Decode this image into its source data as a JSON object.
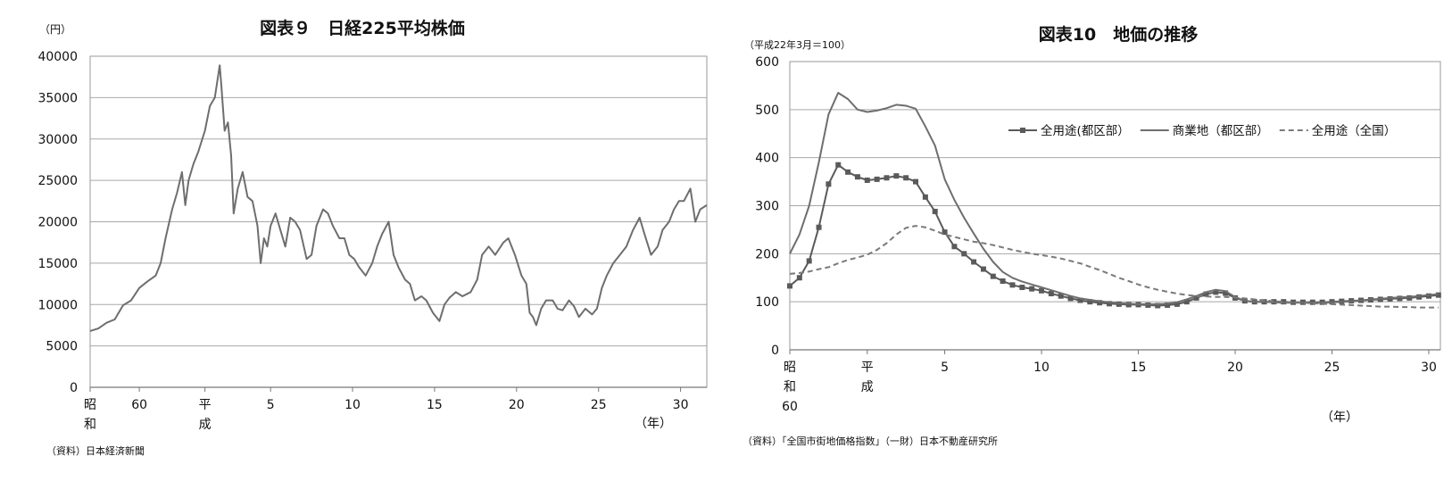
{
  "chart_data": [
    {
      "type": "line",
      "title": "図表９　日経225平均株価",
      "ylabel": "（円）",
      "xlabel": "（年）",
      "source": "（資料）日本経済新聞",
      "ylim": [
        0,
        40000
      ],
      "yticks": [
        "0",
        "5000",
        "10000",
        "15000",
        "20000",
        "25000",
        "30000",
        "35000",
        "40000"
      ],
      "xlim": [
        1982,
        2019.6
      ],
      "xticks": [
        {
          "x": 1982,
          "lines": [
            "昭",
            "和"
          ]
        },
        {
          "x": 1985,
          "lines": [
            "60"
          ]
        },
        {
          "x": 1989,
          "lines": [
            "平",
            "成"
          ]
        },
        {
          "x": 1993,
          "lines": [
            "5"
          ]
        },
        {
          "x": 1998,
          "lines": [
            "10"
          ]
        },
        {
          "x": 2003,
          "lines": [
            "15"
          ]
        },
        {
          "x": 2008,
          "lines": [
            "20"
          ]
        },
        {
          "x": 2013,
          "lines": [
            "25"
          ]
        },
        {
          "x": 2018,
          "lines": [
            "30"
          ]
        }
      ],
      "grid": true,
      "series": [
        {
          "color": "#6e6e6e",
          "x": [
            1982.0,
            1982.5,
            1983.0,
            1983.5,
            1984.0,
            1984.5,
            1985.0,
            1985.5,
            1986.0,
            1986.3,
            1986.6,
            1987.0,
            1987.3,
            1987.6,
            1987.8,
            1988.0,
            1988.3,
            1988.6,
            1989.0,
            1989.3,
            1989.6,
            1989.9,
            1990.0,
            1990.2,
            1990.4,
            1990.6,
            1990.75,
            1991.0,
            1991.3,
            1991.6,
            1991.9,
            1992.2,
            1992.4,
            1992.6,
            1992.8,
            1993.0,
            1993.3,
            1993.6,
            1993.9,
            1994.2,
            1994.5,
            1994.8,
            1995.2,
            1995.5,
            1995.8,
            1996.2,
            1996.5,
            1996.8,
            1997.2,
            1997.5,
            1997.8,
            1998.1,
            1998.4,
            1998.8,
            1999.2,
            1999.5,
            1999.8,
            2000.2,
            2000.5,
            2000.8,
            2001.2,
            2001.5,
            2001.8,
            2002.2,
            2002.5,
            2002.9,
            2003.3,
            2003.6,
            2003.9,
            2004.3,
            2004.7,
            2005.2,
            2005.6,
            2005.9,
            2006.3,
            2006.7,
            2007.2,
            2007.5,
            2007.9,
            2008.3,
            2008.6,
            2008.8,
            2009.0,
            2009.2,
            2009.5,
            2009.8,
            2010.2,
            2010.5,
            2010.8,
            2011.2,
            2011.5,
            2011.8,
            2012.2,
            2012.6,
            2012.9,
            2013.2,
            2013.5,
            2013.9,
            2014.3,
            2014.7,
            2015.1,
            2015.5,
            2015.8,
            2016.2,
            2016.6,
            2016.9,
            2017.3,
            2017.6,
            2017.9,
            2018.2,
            2018.6,
            2018.9,
            2019.2,
            2019.6
          ],
          "y": [
            6800,
            7100,
            7800,
            8200,
            9900,
            10500,
            12000,
            12800,
            13500,
            15000,
            18000,
            21500,
            23500,
            26000,
            22000,
            25000,
            27000,
            28500,
            31000,
            34000,
            35000,
            38900,
            36500,
            31000,
            32000,
            28000,
            21000,
            24000,
            26000,
            23000,
            22500,
            19500,
            15000,
            18000,
            17000,
            19500,
            21000,
            19000,
            17000,
            20500,
            20000,
            19000,
            15500,
            16000,
            19500,
            21500,
            21000,
            19500,
            18000,
            18000,
            16000,
            15500,
            14500,
            13500,
            15000,
            17000,
            18500,
            20000,
            16000,
            14500,
            13000,
            12500,
            10500,
            11000,
            10500,
            9000,
            8000,
            10000,
            10800,
            11500,
            11000,
            11500,
            13000,
            16000,
            17000,
            16000,
            17500,
            18000,
            16000,
            13500,
            12500,
            9000,
            8500,
            7500,
            9500,
            10500,
            10500,
            9500,
            9300,
            10500,
            9800,
            8500,
            9500,
            8800,
            9500,
            12000,
            13500,
            15000,
            16000,
            17000,
            19000,
            20500,
            18500,
            16000,
            17000,
            19000,
            20000,
            21500,
            22500,
            22500,
            24000,
            20000,
            21500,
            22000
          ]
        }
      ]
    },
    {
      "type": "line",
      "title": "図表10　地価の推移",
      "ylabel": "（平成22年3月＝100）",
      "xlabel": "（年）",
      "source": "（資料）「全国市街地価格指数」（一財）日本不動産研究所",
      "ylim": [
        0,
        600
      ],
      "yticks": [
        "0",
        "100",
        "200",
        "300",
        "400",
        "500",
        "600"
      ],
      "xlim": [
        1985,
        2018.6
      ],
      "xticks": [
        {
          "x": 1985,
          "lines": [
            "昭",
            "和",
            "60"
          ]
        },
        {
          "x": 1989,
          "lines": [
            "平",
            "成"
          ]
        },
        {
          "x": 1993,
          "lines": [
            "5"
          ]
        },
        {
          "x": 1998,
          "lines": [
            "10"
          ]
        },
        {
          "x": 2003,
          "lines": [
            "15"
          ]
        },
        {
          "x": 2008,
          "lines": [
            "20"
          ]
        },
        {
          "x": 2013,
          "lines": [
            "25"
          ]
        },
        {
          "x": 2018,
          "lines": [
            "30"
          ]
        }
      ],
      "grid": true,
      "legend_position": "top-right",
      "series": [
        {
          "name": "全用途(都区部）",
          "style": "line-square",
          "color": "#5a5a5a",
          "x": [
            1985,
            1985.5,
            1986,
            1986.5,
            1987,
            1987.5,
            1988,
            1988.5,
            1989,
            1989.5,
            1990,
            1990.5,
            1991,
            1991.5,
            1992,
            1992.5,
            1993,
            1993.5,
            1994,
            1994.5,
            1995,
            1995.5,
            1996,
            1996.5,
            1997,
            1997.5,
            1998,
            1998.5,
            1999,
            1999.5,
            2000,
            2000.5,
            2001,
            2001.5,
            2002,
            2002.5,
            2003,
            2003.5,
            2004,
            2004.5,
            2005,
            2005.5,
            2006,
            2006.5,
            2007,
            2007.5,
            2008,
            2008.5,
            2009,
            2009.5,
            2010,
            2010.5,
            2011,
            2011.5,
            2012,
            2012.5,
            2013,
            2013.5,
            2014,
            2014.5,
            2015,
            2015.5,
            2016,
            2016.5,
            2017,
            2017.5,
            2018,
            2018.5
          ],
          "y": [
            133,
            150,
            185,
            255,
            345,
            385,
            370,
            360,
            353,
            355,
            358,
            362,
            358,
            350,
            318,
            288,
            245,
            215,
            200,
            183,
            168,
            153,
            143,
            135,
            130,
            127,
            123,
            117,
            112,
            107,
            103,
            100,
            98,
            96,
            95,
            94,
            94,
            93,
            92,
            93,
            95,
            100,
            108,
            116,
            120,
            118,
            108,
            102,
            100,
            100,
            100,
            100,
            99,
            99,
            99,
            99,
            100,
            101,
            102,
            103,
            104,
            105,
            106,
            107,
            108,
            110,
            112,
            114
          ]
        },
        {
          "name": "商業地（都区部）",
          "style": "line",
          "color": "#6e6e6e",
          "x": [
            1985,
            1985.5,
            1986,
            1986.5,
            1987,
            1987.5,
            1988,
            1988.5,
            1989,
            1989.5,
            1990,
            1990.5,
            1991,
            1991.5,
            1992,
            1992.5,
            1993,
            1993.5,
            1994,
            1994.5,
            1995,
            1995.5,
            1996,
            1996.5,
            1997,
            1997.5,
            1998,
            1998.5,
            1999,
            1999.5,
            2000,
            2000.5,
            2001,
            2001.5,
            2002,
            2002.5,
            2003,
            2003.5,
            2004,
            2004.5,
            2005,
            2005.5,
            2006,
            2006.5,
            2007,
            2007.5,
            2008,
            2008.5,
            2009,
            2009.5,
            2010,
            2010.5,
            2011,
            2011.5,
            2012,
            2012.5,
            2013,
            2013.5,
            2014,
            2014.5,
            2015,
            2015.5,
            2016,
            2016.5,
            2017,
            2017.5,
            2018,
            2018.5
          ],
          "y": [
            200,
            240,
            300,
            390,
            490,
            535,
            522,
            500,
            495,
            498,
            503,
            510,
            508,
            502,
            465,
            425,
            355,
            312,
            275,
            242,
            210,
            183,
            162,
            150,
            142,
            136,
            130,
            124,
            118,
            112,
            107,
            104,
            101,
            99,
            97,
            96,
            95,
            95,
            95,
            96,
            99,
            105,
            112,
            120,
            125,
            122,
            110,
            102,
            100,
            100,
            99,
            98,
            98,
            98,
            98,
            98,
            99,
            100,
            101,
            103,
            105,
            106,
            108,
            109,
            110,
            112,
            114,
            116
          ]
        },
        {
          "name": "全用途（全国）",
          "style": "dashed",
          "color": "#7a7a7a",
          "x": [
            1985,
            1985.5,
            1986,
            1986.5,
            1987,
            1987.5,
            1988,
            1988.5,
            1989,
            1989.5,
            1990,
            1990.5,
            1991,
            1991.5,
            1992,
            1992.5,
            1993,
            1993.5,
            1994,
            1994.5,
            1995,
            1995.5,
            1996,
            1996.5,
            1997,
            1997.5,
            1998,
            1998.5,
            1999,
            1999.5,
            2000,
            2000.5,
            2001,
            2001.5,
            2002,
            2002.5,
            2003,
            2003.5,
            2004,
            2004.5,
            2005,
            2005.5,
            2006,
            2006.5,
            2007,
            2007.5,
            2008,
            2008.5,
            2009,
            2009.5,
            2010,
            2010.5,
            2011,
            2011.5,
            2012,
            2012.5,
            2013,
            2013.5,
            2014,
            2014.5,
            2015,
            2015.5,
            2016,
            2016.5,
            2017,
            2017.5,
            2018,
            2018.5
          ],
          "y": [
            158,
            160,
            163,
            168,
            172,
            180,
            187,
            192,
            198,
            208,
            222,
            240,
            254,
            258,
            255,
            248,
            240,
            235,
            230,
            225,
            222,
            218,
            213,
            208,
            204,
            200,
            197,
            194,
            190,
            185,
            180,
            173,
            166,
            158,
            150,
            143,
            136,
            130,
            125,
            121,
            117,
            114,
            112,
            111,
            110,
            110,
            109,
            107,
            105,
            103,
            101,
            100,
            99,
            98,
            97,
            96,
            95,
            94,
            93,
            92,
            91,
            90,
            90,
            89,
            89,
            88,
            88,
            88
          ]
        }
      ]
    }
  ]
}
